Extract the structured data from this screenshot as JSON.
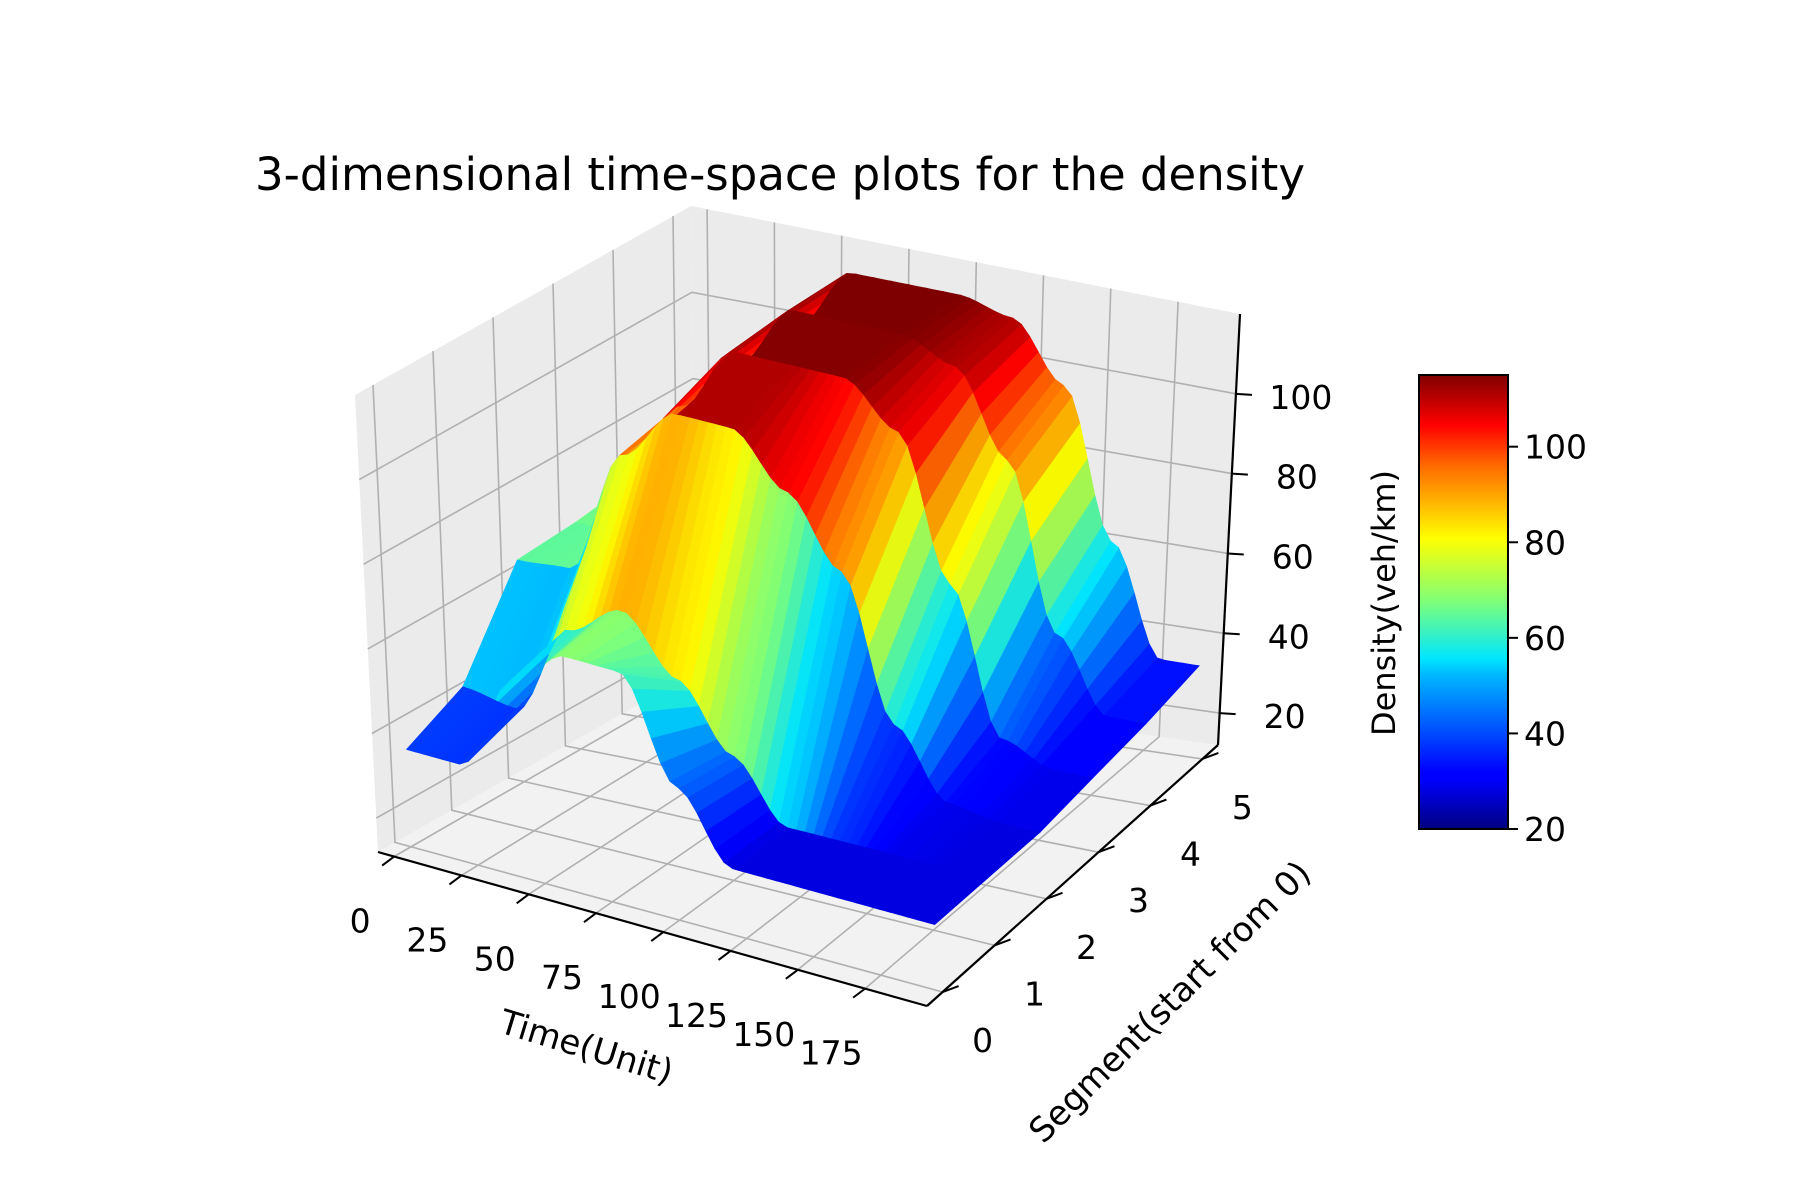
{
  "chart_data": {
    "type": "surface3d",
    "title": "3-dimensional time-space plots for the density",
    "xlabel": "Time(Unit)",
    "ylabel": "Segment(start from 0)",
    "zlabel": "Density(veh/km)",
    "x_ticks": [
      0,
      25,
      50,
      75,
      100,
      125,
      150,
      175
    ],
    "x_tick_labels": [
      "0",
      "25",
      "50",
      "75",
      "100",
      "125",
      "150",
      "175"
    ],
    "y_ticks": [
      0,
      1,
      2,
      3,
      4,
      5
    ],
    "y_tick_labels": [
      "0",
      "1",
      "2",
      "3",
      "4",
      "5"
    ],
    "z_ticks": [
      20,
      40,
      60,
      80,
      100
    ],
    "z_tick_labels": [
      "20",
      "40",
      "60",
      "80",
      "100"
    ],
    "xlim": [
      -6,
      198
    ],
    "ylim": [
      -0.3,
      5.3
    ],
    "zlim": [
      12,
      120
    ],
    "colormap": "jet",
    "colorbar": {
      "label": "Density(veh/km)",
      "range": [
        20,
        115
      ],
      "ticks": [
        20,
        40,
        60,
        80,
        100
      ],
      "tick_labels": [
        "20",
        "40",
        "60",
        "80",
        "100"
      ]
    },
    "grid": true,
    "time_axis": [
      0,
      20,
      40,
      60,
      80,
      100,
      120,
      140,
      160,
      180,
      200
    ],
    "segments": [
      {
        "segment": 0,
        "density": [
          35,
          35,
          58,
          68,
          68,
          44,
          28,
          28,
          28,
          28,
          28
        ]
      },
      {
        "segment": 1,
        "density": [
          42,
          40,
          62,
          70,
          57,
          42,
          28,
          28,
          28,
          28,
          28
        ]
      },
      {
        "segment": 2,
        "density": [
          64,
          65,
          95,
          108,
          108,
          96,
          80,
          46,
          30,
          28,
          28
        ]
      },
      {
        "segment": 3,
        "density": [
          65,
          65,
          98,
          114,
          114,
          114,
          104,
          70,
          35,
          30,
          30
        ]
      },
      {
        "segment": 4,
        "density": [
          67,
          67,
          100,
          115,
          115,
          115,
          110,
          90,
          50,
          32,
          32
        ]
      },
      {
        "segment": 5,
        "density": [
          67,
          67,
          100,
          115,
          115,
          115,
          112,
          98,
          62,
          35,
          35
        ]
      }
    ]
  }
}
